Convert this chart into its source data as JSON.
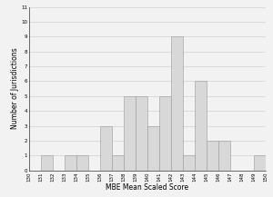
{
  "scores": [
    130,
    131,
    132,
    133,
    134,
    135,
    136,
    137,
    138,
    139,
    140,
    141,
    142,
    143,
    144,
    145,
    146,
    147,
    148,
    149
  ],
  "counts": [
    0,
    1,
    0,
    1,
    1,
    0,
    3,
    1,
    5,
    5,
    3,
    5,
    9,
    1,
    6,
    2,
    2,
    0,
    0,
    1
  ],
  "bar_color": "#d8d8d8",
  "bar_edge_color": "#999999",
  "xlabel": "MBE Mean Scaled Score",
  "ylabel": "Number of Jurisdictions",
  "xlim": [
    130,
    150
  ],
  "ylim": [
    0,
    11
  ],
  "yticks": [
    0,
    1,
    2,
    3,
    4,
    5,
    6,
    7,
    8,
    9,
    10,
    11
  ],
  "xticks": [
    130,
    131,
    132,
    133,
    134,
    135,
    136,
    137,
    138,
    139,
    140,
    141,
    142,
    143,
    144,
    145,
    146,
    147,
    148,
    149,
    150
  ],
  "grid_color": "#d0d0d0",
  "background_color": "#f2f2f2",
  "xlabel_fontsize": 5.5,
  "ylabel_fontsize": 5.5,
  "tick_fontsize": 4.0,
  "bar_linewidth": 0.4
}
